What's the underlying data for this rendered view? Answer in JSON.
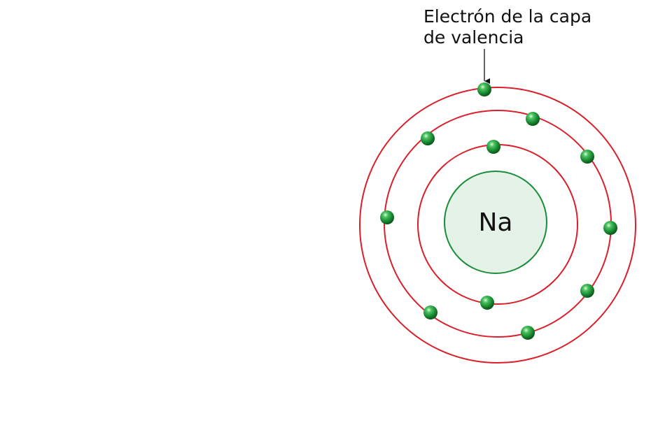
{
  "annotation": {
    "line1": "Electrón de la capa",
    "line2": "de valencia"
  },
  "nucleus": {
    "symbol": "Na"
  },
  "colors": {
    "shell": "#d9202a",
    "nucleus_fill": "#e5f2e8",
    "nucleus_stroke": "#1a8c3a",
    "electron_dark": "#0b5a1c",
    "electron_mid": "#1e9e3a",
    "electron_light": "#c8f5c8",
    "arrow": "#111111"
  },
  "shells": [
    {
      "electrons": 2
    },
    {
      "electrons": 8
    },
    {
      "electrons": 1
    }
  ]
}
